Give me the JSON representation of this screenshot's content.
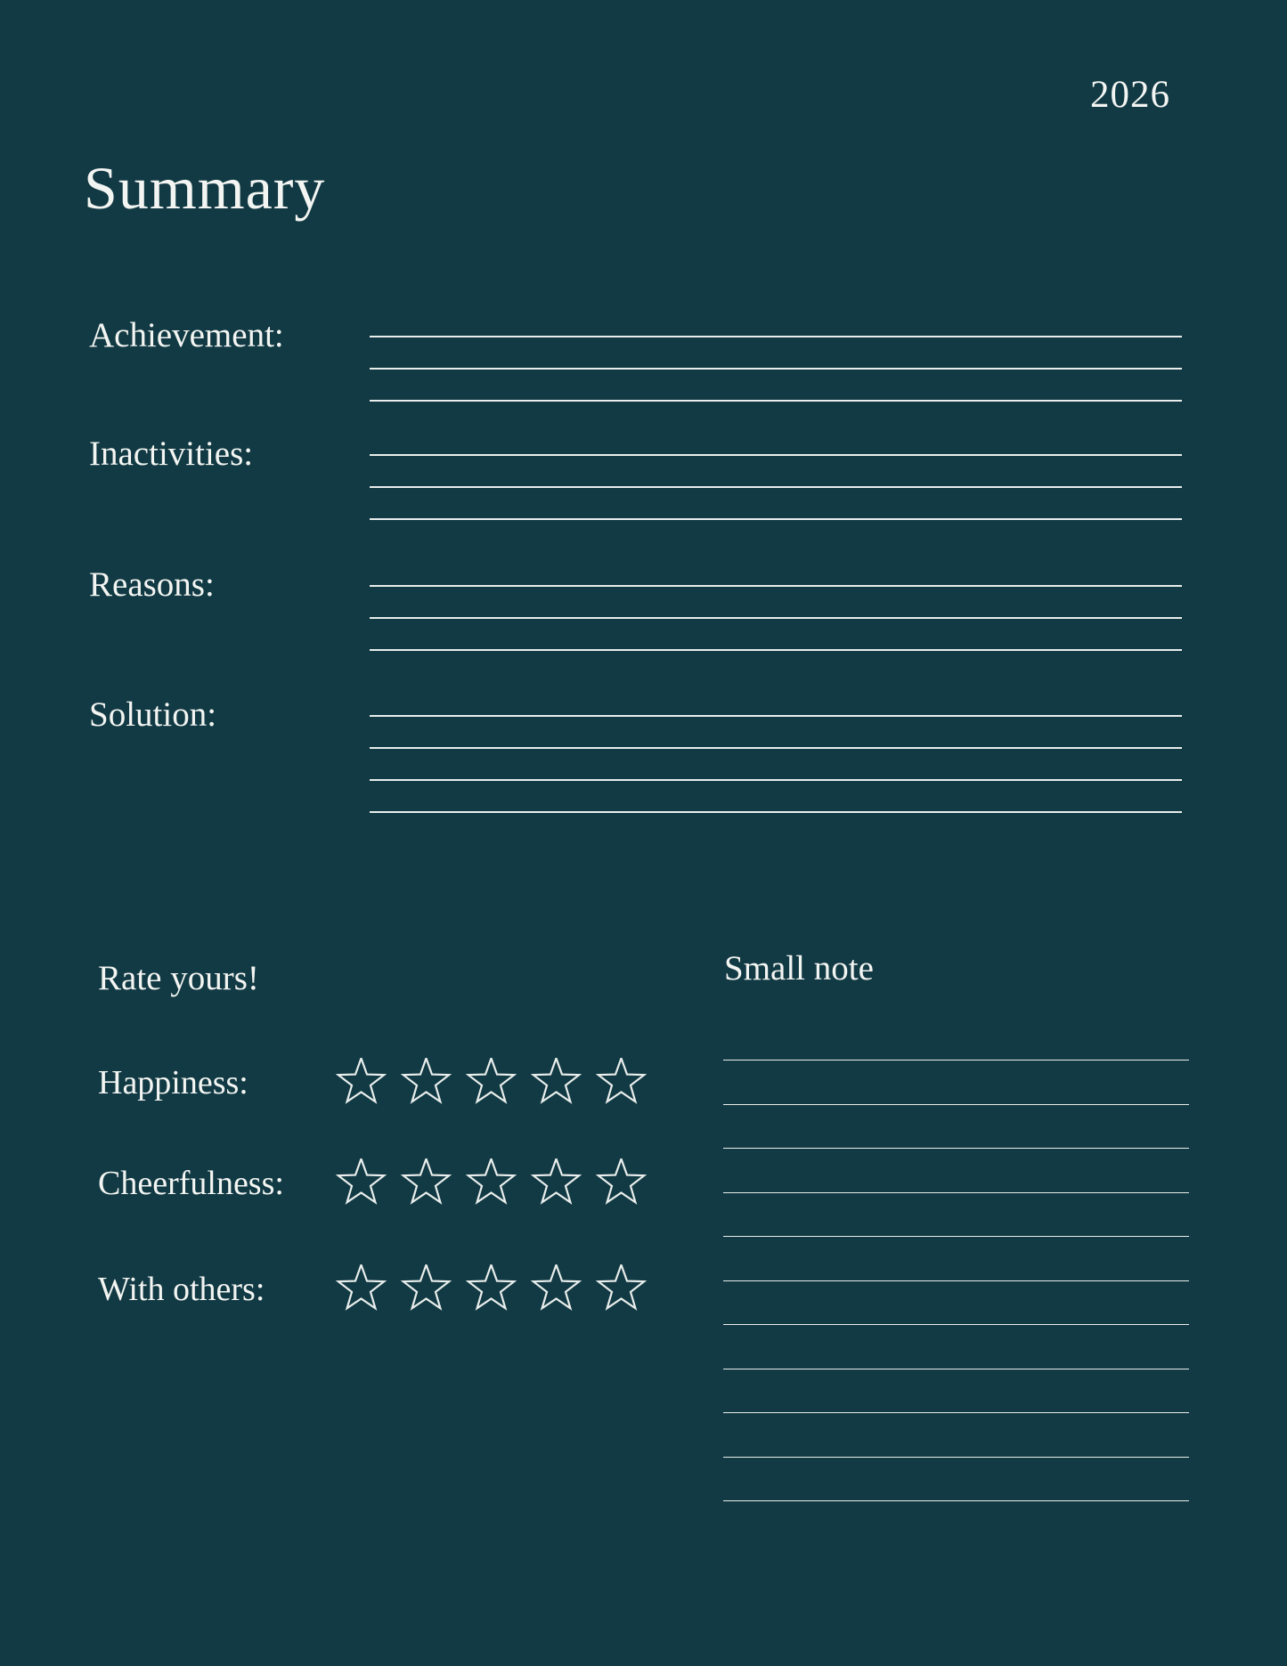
{
  "page": {
    "year": "2026",
    "title": "Summary",
    "background_color": "#123a44",
    "text_color": "#f3f5f2",
    "line_color": "#e9eeec"
  },
  "sections": [
    {
      "label": "Achievement:",
      "write_in_lines": 3
    },
    {
      "label": "Inactivities:",
      "write_in_lines": 3
    },
    {
      "label": "Reasons:",
      "write_in_lines": 3
    },
    {
      "label": "Solution:",
      "write_in_lines": 4
    }
  ],
  "rating": {
    "heading": "Rate yours!",
    "rows": [
      {
        "label": "Happiness:",
        "stars_total": 5,
        "stars_filled": 0
      },
      {
        "label": "Cheerfulness:",
        "stars_total": 5,
        "stars_filled": 0
      },
      {
        "label": "With others:",
        "stars_total": 5,
        "stars_filled": 0
      }
    ]
  },
  "notes": {
    "heading": "Small note",
    "write_in_lines": 11
  }
}
